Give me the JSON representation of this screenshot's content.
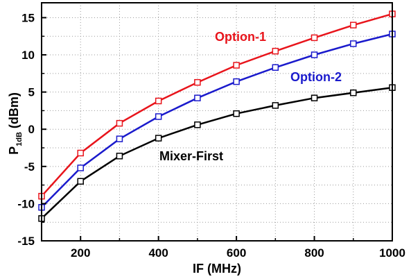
{
  "chart_data": {
    "type": "line",
    "xlabel": "IF (MHz)",
    "ylabel_main": "P",
    "ylabel_sub": "1dB",
    "ylabel_unit": " (dBm)",
    "xlim": [
      100,
      1000
    ],
    "ylim": [
      -15,
      17
    ],
    "x_ticks": [
      200,
      400,
      600,
      800,
      1000
    ],
    "y_ticks": [
      -15,
      -10,
      -5,
      0,
      5,
      10,
      15
    ],
    "x_tick_labels": [
      "200",
      "400",
      "600",
      "800",
      "1000"
    ],
    "y_tick_labels": [
      "-15",
      "-10",
      "-5",
      "0",
      "5",
      "10",
      "15"
    ],
    "grid": "dotted",
    "x": [
      100,
      200,
      300,
      400,
      500,
      600,
      700,
      800,
      900,
      1000
    ],
    "series": [
      {
        "name": "Option-1",
        "color": "#e8141b",
        "values": [
          -9,
          -3.2,
          0.8,
          3.8,
          6.3,
          8.6,
          10.5,
          12.3,
          14.0,
          15.5
        ]
      },
      {
        "name": "Option-2",
        "color": "#1a1acc",
        "values": [
          -10.5,
          -5.2,
          -1.3,
          1.7,
          4.2,
          6.4,
          8.3,
          10.0,
          11.5,
          12.8
        ]
      },
      {
        "name": "Mixer-First",
        "color": "#000000",
        "values": [
          -12,
          -7,
          -3.6,
          -1.2,
          0.6,
          2.1,
          3.2,
          4.2,
          4.9,
          5.6
        ]
      }
    ]
  }
}
